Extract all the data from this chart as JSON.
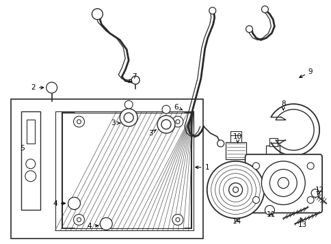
{
  "bg_color": "#ffffff",
  "line_color": "#2a2a2a",
  "fig_width": 4.85,
  "fig_height": 3.57,
  "dpi": 100
}
